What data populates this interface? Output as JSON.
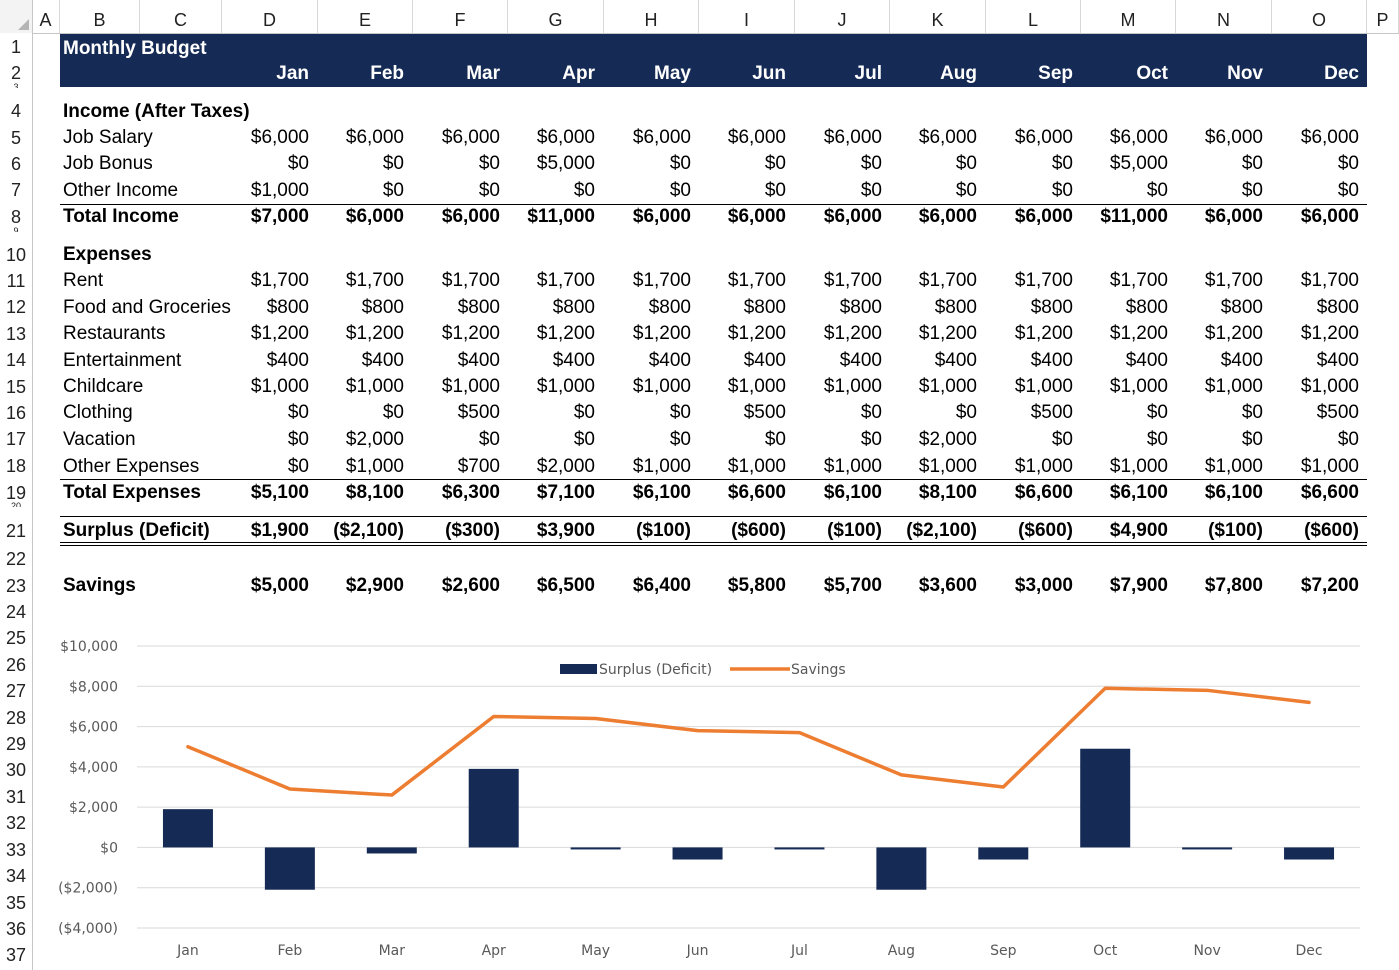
{
  "columns": [
    "A",
    "B",
    "C",
    "D",
    "E",
    "F",
    "G",
    "H",
    "I",
    "J",
    "K",
    "L",
    "M",
    "N",
    "O",
    "P"
  ],
  "rows": [
    "1",
    "2",
    "3",
    "4",
    "5",
    "6",
    "7",
    "8",
    "9",
    "10",
    "11",
    "12",
    "13",
    "14",
    "15",
    "16",
    "17",
    "18",
    "19",
    "20",
    "21",
    "22",
    "23",
    "24",
    "25",
    "26",
    "27",
    "28",
    "29",
    "30",
    "31",
    "32",
    "33",
    "34",
    "35",
    "36",
    "37"
  ],
  "sheet": {
    "title": "Monthly Budget",
    "months": [
      "Jan",
      "Feb",
      "Mar",
      "Apr",
      "May",
      "Jun",
      "Jul",
      "Aug",
      "Sep",
      "Oct",
      "Nov",
      "Dec"
    ],
    "income_header": "Income (After Taxes)",
    "income_rows": [
      {
        "label": "Job Salary",
        "values": [
          "$6,000",
          "$6,000",
          "$6,000",
          "$6,000",
          "$6,000",
          "$6,000",
          "$6,000",
          "$6,000",
          "$6,000",
          "$6,000",
          "$6,000",
          "$6,000"
        ]
      },
      {
        "label": "Job Bonus",
        "values": [
          "$0",
          "$0",
          "$0",
          "$5,000",
          "$0",
          "$0",
          "$0",
          "$0",
          "$0",
          "$5,000",
          "$0",
          "$0"
        ]
      },
      {
        "label": "Other Income",
        "values": [
          "$1,000",
          "$0",
          "$0",
          "$0",
          "$0",
          "$0",
          "$0",
          "$0",
          "$0",
          "$0",
          "$0",
          "$0"
        ]
      }
    ],
    "total_income": {
      "label": "Total Income",
      "values": [
        "$7,000",
        "$6,000",
        "$6,000",
        "$11,000",
        "$6,000",
        "$6,000",
        "$6,000",
        "$6,000",
        "$6,000",
        "$11,000",
        "$6,000",
        "$6,000"
      ]
    },
    "expenses_header": "Expenses",
    "expense_rows": [
      {
        "label": "Rent",
        "values": [
          "$1,700",
          "$1,700",
          "$1,700",
          "$1,700",
          "$1,700",
          "$1,700",
          "$1,700",
          "$1,700",
          "$1,700",
          "$1,700",
          "$1,700",
          "$1,700"
        ]
      },
      {
        "label": "Food and Groceries",
        "values": [
          "$800",
          "$800",
          "$800",
          "$800",
          "$800",
          "$800",
          "$800",
          "$800",
          "$800",
          "$800",
          "$800",
          "$800"
        ]
      },
      {
        "label": "Restaurants",
        "values": [
          "$1,200",
          "$1,200",
          "$1,200",
          "$1,200",
          "$1,200",
          "$1,200",
          "$1,200",
          "$1,200",
          "$1,200",
          "$1,200",
          "$1,200",
          "$1,200"
        ]
      },
      {
        "label": "Entertainment",
        "values": [
          "$400",
          "$400",
          "$400",
          "$400",
          "$400",
          "$400",
          "$400",
          "$400",
          "$400",
          "$400",
          "$400",
          "$400"
        ]
      },
      {
        "label": "Childcare",
        "values": [
          "$1,000",
          "$1,000",
          "$1,000",
          "$1,000",
          "$1,000",
          "$1,000",
          "$1,000",
          "$1,000",
          "$1,000",
          "$1,000",
          "$1,000",
          "$1,000"
        ]
      },
      {
        "label": "Clothing",
        "values": [
          "$0",
          "$0",
          "$500",
          "$0",
          "$0",
          "$500",
          "$0",
          "$0",
          "$500",
          "$0",
          "$0",
          "$500"
        ]
      },
      {
        "label": "Vacation",
        "values": [
          "$0",
          "$2,000",
          "$0",
          "$0",
          "$0",
          "$0",
          "$0",
          "$2,000",
          "$0",
          "$0",
          "$0",
          "$0"
        ]
      },
      {
        "label": "Other Expenses",
        "values": [
          "$0",
          "$1,000",
          "$700",
          "$2,000",
          "$1,000",
          "$1,000",
          "$1,000",
          "$1,000",
          "$1,000",
          "$1,000",
          "$1,000",
          "$1,000"
        ]
      }
    ],
    "total_expenses": {
      "label": "Total Expenses",
      "values": [
        "$5,100",
        "$8,100",
        "$6,300",
        "$7,100",
        "$6,100",
        "$6,600",
        "$6,100",
        "$8,100",
        "$6,600",
        "$6,100",
        "$6,100",
        "$6,600"
      ]
    },
    "surplus": {
      "label": "Surplus (Deficit)",
      "values": [
        "$1,900",
        "($2,100)",
        "($300)",
        "$3,900",
        "($100)",
        "($600)",
        "($100)",
        "($2,100)",
        "($600)",
        "$4,900",
        "($100)",
        "($600)"
      ]
    },
    "savings": {
      "label": "Savings",
      "values": [
        "$5,000",
        "$2,900",
        "$2,600",
        "$6,500",
        "$6,400",
        "$5,800",
        "$5,700",
        "$3,600",
        "$3,000",
        "$7,900",
        "$7,800",
        "$7,200"
      ]
    }
  },
  "colors": {
    "header_band": "#152b55",
    "bar": "#152b55",
    "line": "#ed7d31",
    "gridline": "#d9d9d9"
  },
  "chart_data": {
    "type": "bar",
    "categories": [
      "Jan",
      "Feb",
      "Mar",
      "Apr",
      "May",
      "Jun",
      "Jul",
      "Aug",
      "Sep",
      "Oct",
      "Nov",
      "Dec"
    ],
    "series": [
      {
        "name": "Surplus (Deficit)",
        "kind": "bar",
        "values": [
          1900,
          -2100,
          -300,
          3900,
          -100,
          -600,
          -100,
          -2100,
          -600,
          4900,
          -100,
          -600
        ]
      },
      {
        "name": "Savings",
        "kind": "line",
        "values": [
          5000,
          2900,
          2600,
          6500,
          6400,
          5800,
          5700,
          3600,
          3000,
          7900,
          7800,
          7200
        ]
      }
    ],
    "ytick_labels": [
      "$10,000",
      "$8,000",
      "$6,000",
      "$4,000",
      "$2,000",
      "$0",
      "($2,000)",
      "($4,000)"
    ],
    "ytick_values": [
      10000,
      8000,
      6000,
      4000,
      2000,
      0,
      -2000,
      -4000
    ],
    "ylim": [
      -4000,
      10000
    ],
    "grid": true,
    "legend_position": "top-center"
  }
}
